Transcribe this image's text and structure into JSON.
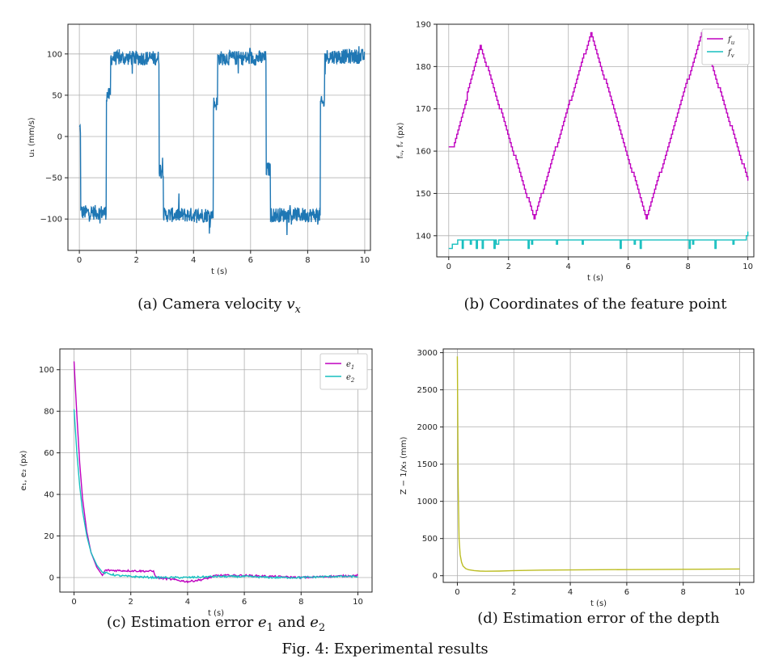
{
  "figure_caption": "Fig. 4: Experimental results",
  "chart_data": [
    {
      "id": "a",
      "type": "line",
      "caption": "(a) Camera velocity v",
      "caption_sub": "x",
      "xlabel": "t (s)",
      "ylabel": "u₁ (mm/s)",
      "xlim": [
        -0.4,
        10.2
      ],
      "ylim": [
        -138,
        136
      ],
      "xticks": [
        0,
        2,
        4,
        6,
        8,
        10
      ],
      "yticks": [
        -100,
        -50,
        0,
        50,
        100
      ],
      "grid": true,
      "series": [
        {
          "color": "#1f77b4",
          "segments": [
            {
              "t0": 0.0,
              "t1": 0.05,
              "v": 10
            },
            {
              "t0": 0.05,
              "t1": 0.95,
              "v": -92
            },
            {
              "t0": 0.95,
              "t1": 1.1,
              "v": 50
            },
            {
              "t0": 1.1,
              "t1": 2.8,
              "v": 95
            },
            {
              "t0": 2.8,
              "t1": 2.95,
              "v": -40
            },
            {
              "t0": 2.95,
              "t1": 4.7,
              "v": -95
            },
            {
              "t0": 4.7,
              "t1": 4.85,
              "v": 40
            },
            {
              "t0": 4.85,
              "t1": 6.55,
              "v": 95
            },
            {
              "t0": 6.55,
              "t1": 6.7,
              "v": -40
            },
            {
              "t0": 6.7,
              "t1": 8.45,
              "v": -95
            },
            {
              "t0": 8.45,
              "t1": 8.6,
              "v": 40
            },
            {
              "t0": 8.6,
              "t1": 10.0,
              "v": 97
            }
          ],
          "noise": 9
        }
      ]
    },
    {
      "id": "b",
      "type": "line",
      "caption": "(b) Coordinates of the feature point",
      "xlabel": "t (s)",
      "ylabel": "fᵤ, fᵥ (px)",
      "xlim": [
        -0.4,
        10.2
      ],
      "ylim": [
        135,
        190
      ],
      "xticks": [
        0,
        2,
        4,
        6,
        8,
        10
      ],
      "yticks": [
        140,
        150,
        160,
        170,
        180,
        190
      ],
      "grid": true,
      "legend": "top-right",
      "series": [
        {
          "name": "f",
          "sub": "u",
          "color": "#bf00bf",
          "x": [
            0,
            0.15,
            1.05,
            2.85,
            4.75,
            6.6,
            8.45,
            10.0
          ],
          "y": [
            161,
            161,
            185,
            144,
            188,
            144,
            188,
            153
          ]
        },
        {
          "name": "f",
          "sub": "v",
          "color": "#17bfbf",
          "x": [
            0,
            0.2,
            0.3,
            0.6,
            1.0,
            2.5,
            3.0,
            4.0,
            4.5,
            5.5,
            6.0,
            7.0,
            7.5,
            8.0,
            8.5,
            9.9,
            10.0
          ],
          "y": [
            137,
            138,
            138.5,
            139,
            138.8,
            139.2,
            139,
            138.8,
            139,
            139,
            139.2,
            139,
            138.8,
            139,
            139,
            139,
            141
          ]
        }
      ]
    },
    {
      "id": "c",
      "type": "line",
      "caption": "(c) Estimation error e",
      "caption_mid": "and e",
      "xlabel": "t (s)",
      "ylabel": "e₁, e₂ (px)",
      "xlim": [
        -0.5,
        10.5
      ],
      "ylim": [
        -7,
        110
      ],
      "xticks": [
        0,
        2,
        4,
        6,
        8,
        10
      ],
      "yticks": [
        0,
        20,
        40,
        60,
        80,
        100
      ],
      "grid": true,
      "legend": "top-right",
      "series": [
        {
          "name": "e",
          "sub": "1",
          "color": "#bf00bf",
          "x": [
            0,
            0.1,
            0.2,
            0.3,
            0.45,
            0.6,
            0.8,
            1.0,
            1.1,
            2.8,
            2.9,
            3.5,
            4.0,
            4.5,
            4.8,
            5.0,
            6.0,
            7.0,
            8.0,
            9.0,
            10.0
          ],
          "y": [
            104,
            78,
            55,
            38,
            22,
            12,
            5,
            1,
            3.5,
            3,
            0,
            -1,
            -2,
            -1,
            0,
            1,
            1,
            0.5,
            0,
            0.5,
            1
          ]
        },
        {
          "name": "e",
          "sub": "2",
          "color": "#17bfbf",
          "x": [
            0,
            0.1,
            0.2,
            0.3,
            0.45,
            0.6,
            0.8,
            1.0,
            1.5,
            2.0,
            2.8,
            3.5,
            4.0,
            5.0,
            6.0,
            7.0,
            8.0,
            9.0,
            10.0
          ],
          "y": [
            81,
            60,
            44,
            32,
            20,
            12,
            6,
            2.5,
            1,
            0.5,
            0,
            0,
            0,
            0.5,
            0.5,
            0,
            0,
            0.5,
            0.5
          ]
        }
      ]
    },
    {
      "id": "d",
      "type": "line",
      "caption": "(d) Estimation error of the depth",
      "xlabel": "t (s)",
      "ylabel": "Z − 1/x₃ (mm)",
      "xlim": [
        -0.5,
        10.5
      ],
      "ylim": [
        -90,
        3050
      ],
      "xticks": [
        0,
        2,
        4,
        6,
        8,
        10
      ],
      "yticks": [
        0,
        500,
        1000,
        1500,
        2000,
        2500,
        3000
      ],
      "grid": true,
      "series": [
        {
          "color": "#bcbd22",
          "x": [
            0,
            0.03,
            0.06,
            0.1,
            0.15,
            0.2,
            0.3,
            0.4,
            0.6,
            0.8,
            1.0,
            1.5,
            2.0,
            3.0,
            4.0,
            6.0,
            8.0,
            10.0
          ],
          "y": [
            2950,
            1200,
            500,
            280,
            180,
            130,
            95,
            80,
            68,
            62,
            60,
            62,
            68,
            75,
            78,
            82,
            86,
            90
          ]
        }
      ]
    }
  ]
}
